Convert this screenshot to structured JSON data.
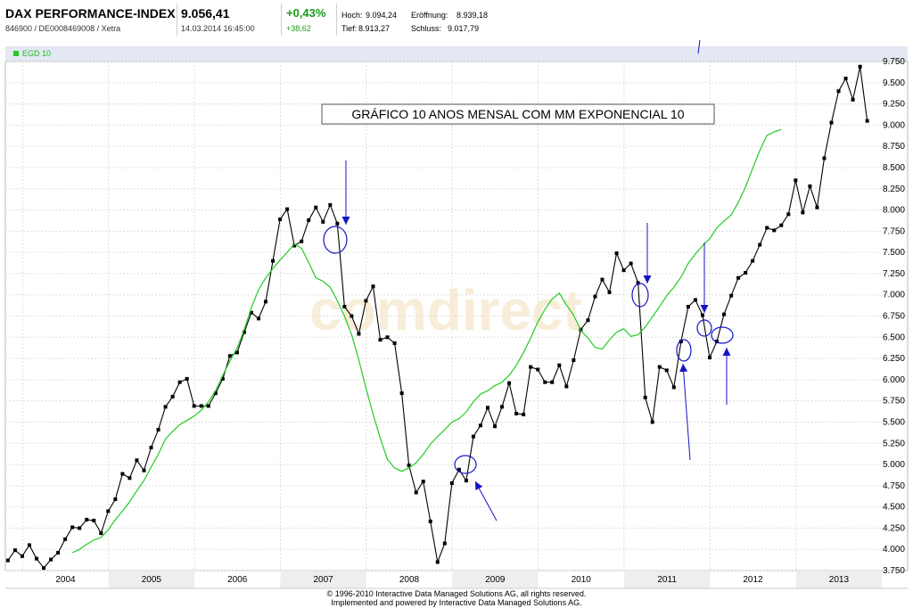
{
  "header": {
    "index_name": "DAX PERFORMANCE-INDEX",
    "identifier": "846900 / DE0008469008 / Xetra",
    "price": "9.056,41",
    "datetime": "14.03.2014 16:45:00",
    "change_pct": "+0,43%",
    "change_abs": "+38,62",
    "high_label": "Hoch:",
    "high_value": "9.094,24",
    "open_label": "Eröffnung:",
    "open_value": "8.939,18",
    "low_label": "Tief:",
    "low_value": "8.913,27",
    "close_label": "Schluss:",
    "close_value": "9.017,79"
  },
  "legend": {
    "label": "EGD 10",
    "color": "#22cc22"
  },
  "annotation_text": "GRÁFICO 10 ANOS MENSAL COM MM EXPONENCIAL 10",
  "watermark": "comdirect",
  "footer": {
    "line1": "© 1996-2010 Interactive Data Managed Solutions AG, all rights reserved.",
    "line2": "Implemented and powered by Interactive Data Managed Solutions AG."
  },
  "chart_data": {
    "type": "line",
    "x_start": 2003.83,
    "x_step": 0.08333,
    "xlim": [
      2003.8,
      2014.3
    ],
    "ylim": [
      3750,
      9750
    ],
    "y_ticks": [
      3750,
      4000,
      4250,
      4500,
      4750,
      5000,
      5250,
      5500,
      5750,
      6000,
      6250,
      6500,
      6750,
      7000,
      7250,
      7500,
      7750,
      8000,
      8250,
      8500,
      8750,
      9000,
      9250,
      9500,
      9750
    ],
    "y_tick_labels": [
      "3.750",
      "4.000",
      "4.250",
      "4.500",
      "4.750",
      "5.000",
      "5.250",
      "5.500",
      "5.750",
      "6.000",
      "6.250",
      "6.500",
      "6.750",
      "7.000",
      "7.250",
      "7.500",
      "7.750",
      "8.000",
      "8.250",
      "8.500",
      "8.750",
      "9.000",
      "9.250",
      "9.500",
      "9.750"
    ],
    "x_ticks": [
      2004,
      2005,
      2006,
      2007,
      2008,
      2009,
      2010,
      2011,
      2012,
      2013
    ],
    "x_tick_labels": [
      "2004",
      "2005",
      "2006",
      "2007",
      "2008",
      "2009",
      "2010",
      "2011",
      "2012",
      "2013"
    ],
    "grid": true,
    "series": [
      {
        "name": "",
        "color": "#000000",
        "markers": true,
        "values": [
          3870,
          3990,
          3920,
          4050,
          3890,
          3780,
          3880,
          3960,
          4120,
          4260,
          4250,
          4350,
          4340,
          4190,
          4450,
          4590,
          4890,
          4840,
          5050,
          4930,
          5200,
          5410,
          5680,
          5800,
          5970,
          6010,
          5690,
          5690,
          5690,
          5840,
          6010,
          6280,
          6320,
          6560,
          6790,
          6720,
          6920,
          7400,
          7890,
          8010,
          7580,
          7630,
          7880,
          8030,
          7860,
          8060,
          7840,
          6860,
          6750,
          6540,
          6930,
          7100,
          6470,
          6500,
          6430,
          5840,
          4990,
          4670,
          4800,
          4330,
          3850,
          4070,
          4780,
          4940,
          4810,
          5330,
          5460,
          5670,
          5450,
          5680,
          5960,
          5600,
          5590,
          6150,
          6120,
          5970,
          5970,
          6170,
          5920,
          6230,
          6590,
          6700,
          6980,
          7180,
          7030,
          7490,
          7290,
          7370,
          7140,
          5790,
          5500,
          6150,
          6110,
          5910,
          6450,
          6860,
          6940,
          6760,
          6260,
          6450,
          6770,
          6990,
          7200,
          7260,
          7400,
          7590,
          7790,
          7760,
          7820,
          7950,
          8350,
          7970,
          8280,
          8030,
          8610,
          9030,
          9400,
          9550,
          9300,
          9690,
          9050
        ]
      },
      {
        "name": "EGD 10",
        "color": "#22cc22",
        "markers": false,
        "x_offset": 9,
        "values": [
          3960,
          4000,
          4060,
          4110,
          4140,
          4230,
          4350,
          4450,
          4560,
          4690,
          4810,
          4970,
          5120,
          5300,
          5390,
          5470,
          5520,
          5570,
          5640,
          5740,
          5870,
          6050,
          6220,
          6370,
          6590,
          6850,
          7060,
          7200,
          7310,
          7410,
          7500,
          7600,
          7550,
          7380,
          7200,
          7160,
          7090,
          6930,
          6750,
          6530,
          6230,
          5900,
          5590,
          5310,
          5060,
          4960,
          4920,
          4960,
          5020,
          5120,
          5240,
          5330,
          5410,
          5500,
          5540,
          5620,
          5740,
          5830,
          5870,
          5930,
          5970,
          6050,
          6170,
          6320,
          6490,
          6680,
          6830,
          6950,
          7020,
          6880,
          6760,
          6580,
          6490,
          6380,
          6360,
          6470,
          6560,
          6600,
          6510,
          6530,
          6620,
          6740,
          6860,
          6990,
          7090,
          7210,
          7370,
          7480,
          7580,
          7660,
          7790,
          7870,
          7940,
          8090,
          8270,
          8490,
          8700,
          8880,
          8920,
          8950
        ]
      }
    ]
  }
}
